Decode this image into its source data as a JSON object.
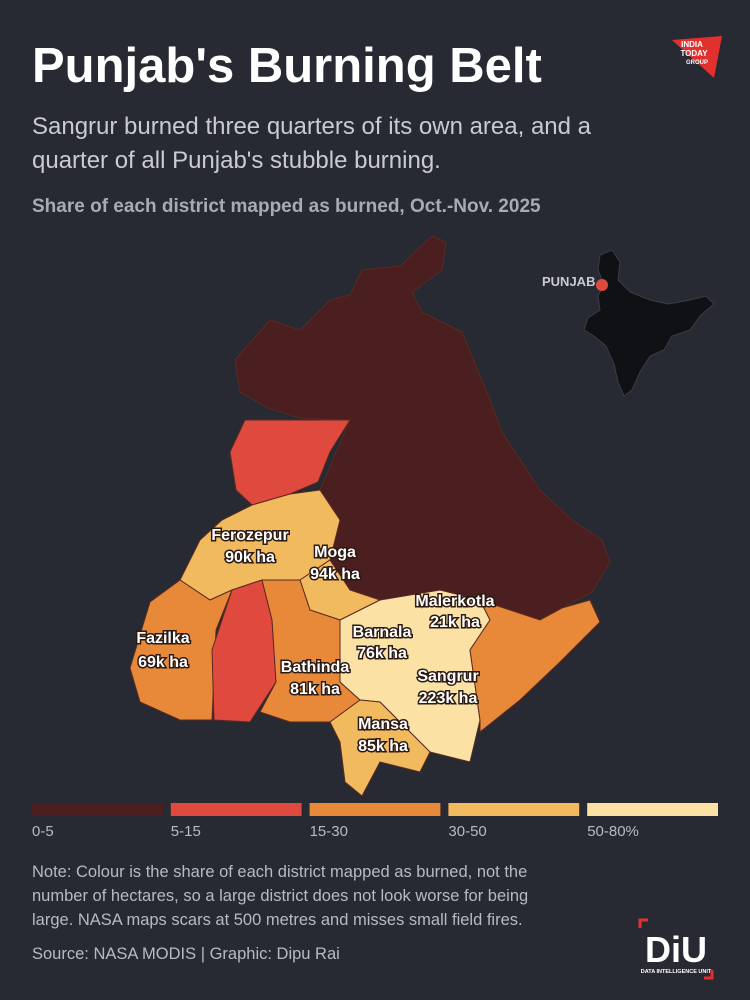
{
  "header": {
    "title": "Punjab's Burning Belt",
    "subtitle_lines": [
      "Sangrur burned three quarters of its own area, and a",
      "quarter of all Punjab's stubble burning."
    ],
    "map_label": "Share of each district mapped as burned, Oct.-Nov. 2025"
  },
  "logo": {
    "lines": [
      "INDIA",
      "TODAY",
      "GROUP"
    ]
  },
  "inset": {
    "label": "PUNJAB"
  },
  "districts": [
    {
      "name": "Ferozepur",
      "value": "90k ha"
    },
    {
      "name": "Moga",
      "value": "94k ha"
    },
    {
      "name": "Malerkotla",
      "value": "21k ha"
    },
    {
      "name": "Barnala",
      "value": "76k ha"
    },
    {
      "name": "Fazilka",
      "value": "69k ha"
    },
    {
      "name": "Bathinda",
      "value": "81k ha"
    },
    {
      "name": "Sangrur",
      "value": "223k ha"
    },
    {
      "name": "Mansa",
      "value": "85k ha"
    }
  ],
  "legend": [
    {
      "label": "0-5",
      "color": "#4b1e1f"
    },
    {
      "label": "5-15",
      "color": "#e04a3e"
    },
    {
      "label": "15-30",
      "color": "#e8893a"
    },
    {
      "label": "30-50",
      "color": "#f2ba5e"
    },
    {
      "label": "50-80%",
      "color": "#fbe2a4"
    }
  ],
  "note": {
    "lines": [
      "Note: Colour is the share of each district mapped as burned, not the",
      "number of hectares, so a large district does not look worse for being",
      "large. NASA maps scars at 500 metres and misses small field fires."
    ],
    "source": "Source: NASA MODIS | Graphic: Dipu Rai"
  },
  "diu": {
    "mark": "DiU",
    "caption": "DATA INTELLIGENCE UNIT"
  }
}
